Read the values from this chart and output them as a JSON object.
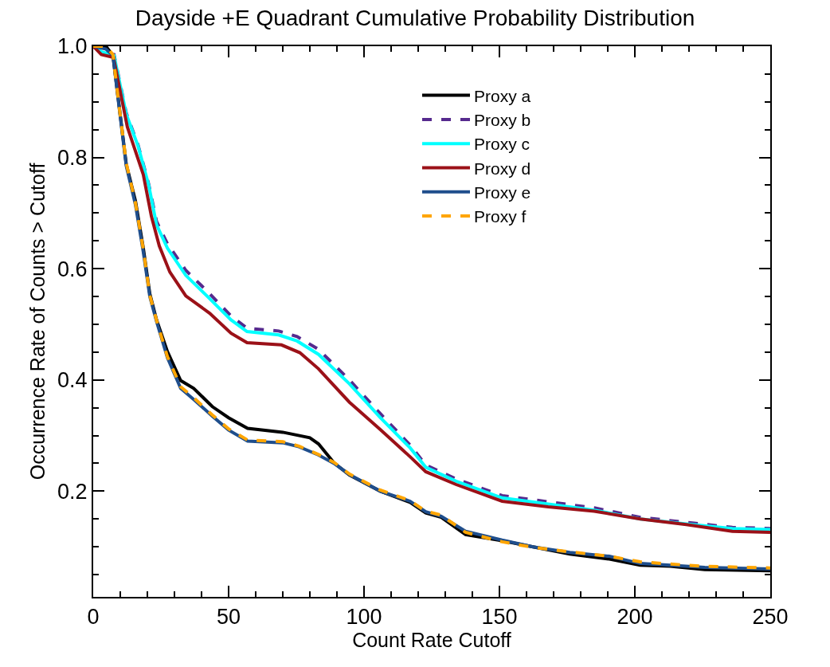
{
  "chart_data": {
    "type": "line",
    "title": "Dayside +E Quadrant Cumulative Probability Distribution",
    "xlabel": "Count Rate Cutoff",
    "ylabel": "Occurrence Rate of Counts > Cutoff",
    "xlim": [
      0,
      250
    ],
    "ylim": [
      0.01,
      1.0
    ],
    "xticks": [
      0,
      {
        "value": 10,
        "label": null
      },
      {
        "value": 20,
        "label": null
      },
      {
        "value": 30,
        "label": null
      },
      {
        "value": 40,
        "label": null
      },
      50,
      {
        "value": 60,
        "label": null
      },
      {
        "value": 70,
        "label": null
      },
      {
        "value": 80,
        "label": null
      },
      {
        "value": 90,
        "label": null
      },
      100,
      {
        "value": 110,
        "label": null
      },
      {
        "value": 120,
        "label": null
      },
      {
        "value": 130,
        "label": null
      },
      {
        "value": 140,
        "label": null
      },
      150,
      {
        "value": 160,
        "label": null
      },
      {
        "value": 170,
        "label": null
      },
      {
        "value": 180,
        "label": null
      },
      {
        "value": 190,
        "label": null
      },
      200,
      {
        "value": 210,
        "label": null
      },
      {
        "value": 220,
        "label": null
      },
      {
        "value": 230,
        "label": null
      },
      {
        "value": 240,
        "label": null
      },
      250
    ],
    "yticks": [
      {
        "value": 0.05,
        "label": null
      },
      {
        "value": 0.1,
        "label": null
      },
      {
        "value": 0.15,
        "label": null
      },
      0.2,
      {
        "value": 0.25,
        "label": null
      },
      {
        "value": 0.3,
        "label": null
      },
      {
        "value": 0.35,
        "label": null
      },
      0.4,
      {
        "value": 0.45,
        "label": null
      },
      {
        "value": 0.5,
        "label": null
      },
      {
        "value": 0.55,
        "label": null
      },
      0.6,
      {
        "value": 0.65,
        "label": null
      },
      {
        "value": 0.7,
        "label": null
      },
      {
        "value": 0.75,
        "label": null
      },
      0.8,
      {
        "value": 0.85,
        "label": null
      },
      {
        "value": 0.9,
        "label": null
      },
      {
        "value": 0.95,
        "label": null
      },
      {
        "value": 1.0,
        "label": "1.0"
      }
    ],
    "legend": "top right",
    "series": [
      {
        "name": "Proxy a",
        "color": "#000000",
        "line_style": "solid",
        "x": [
          0,
          4.7,
          7.3,
          9.7,
          12.2,
          15.6,
          18.5,
          20.9,
          23.4,
          27.4,
          32.3,
          37.1,
          44,
          50,
          57,
          70,
          80,
          83.2,
          88.9,
          94.6,
          106,
          117,
          122.8,
          128.5,
          137.5,
          151,
          162.4,
          176,
          190.6,
          202,
          213,
          225.8,
          250
        ],
        "values": [
          1.0,
          1.0,
          0.983,
          0.888,
          0.788,
          0.722,
          0.637,
          0.555,
          0.508,
          0.451,
          0.399,
          0.385,
          0.352,
          0.332,
          0.313,
          0.306,
          0.296,
          0.285,
          0.251,
          0.229,
          0.2,
          0.18,
          0.161,
          0.153,
          0.122,
          0.111,
          0.1,
          0.087,
          0.078,
          0.067,
          0.065,
          0.059,
          0.057
        ]
      },
      {
        "name": "Proxy b",
        "color": "#562a8e",
        "line_style": "dashed",
        "x": [
          0,
          3,
          7.7,
          12.2,
          16.6,
          20.5,
          23.4,
          27.4,
          34.2,
          42,
          50.9,
          56.8,
          68.5,
          75.3,
          83.2,
          94.6,
          105.9,
          117,
          122.8,
          134,
          151,
          168,
          185,
          202,
          219,
          236,
          250
        ],
        "values": [
          1.0,
          0.99,
          0.985,
          0.88,
          0.822,
          0.752,
          0.685,
          0.645,
          0.597,
          0.56,
          0.515,
          0.493,
          0.488,
          0.478,
          0.455,
          0.4,
          0.34,
          0.283,
          0.247,
          0.222,
          0.192,
          0.181,
          0.17,
          0.153,
          0.144,
          0.135,
          0.133
        ]
      },
      {
        "name": "Proxy c",
        "color": "#00ffff",
        "line_style": "solid",
        "x": [
          0,
          3,
          7.7,
          12.2,
          16.6,
          20.5,
          23.4,
          27.4,
          34.2,
          42,
          50.9,
          56.8,
          68.5,
          75.3,
          83.2,
          94.6,
          105.9,
          117,
          122.8,
          134,
          151,
          168,
          185,
          202,
          219,
          236,
          250
        ],
        "values": [
          1.0,
          0.99,
          0.983,
          0.878,
          0.82,
          0.75,
          0.679,
          0.637,
          0.588,
          0.551,
          0.508,
          0.487,
          0.481,
          0.47,
          0.446,
          0.393,
          0.333,
          0.278,
          0.243,
          0.218,
          0.188,
          0.177,
          0.166,
          0.15,
          0.141,
          0.133,
          0.131
        ]
      },
      {
        "name": "Proxy d",
        "color": "#9b1118",
        "line_style": "solid",
        "x": [
          0,
          3,
          7.5,
          12.6,
          18.5,
          21.5,
          24.4,
          28.3,
          34.2,
          43,
          50.9,
          56.8,
          69.5,
          76.3,
          83.2,
          94.6,
          106,
          117,
          122.8,
          134,
          151,
          168,
          185,
          202,
          219,
          236,
          250
        ],
        "values": [
          1.0,
          0.985,
          0.98,
          0.855,
          0.769,
          0.694,
          0.641,
          0.594,
          0.551,
          0.52,
          0.484,
          0.467,
          0.463,
          0.449,
          0.42,
          0.36,
          0.311,
          0.262,
          0.235,
          0.212,
          0.182,
          0.172,
          0.164,
          0.15,
          0.14,
          0.128,
          0.126
        ]
      },
      {
        "name": "Proxy e",
        "color": "#1f4e8c",
        "line_style": "solid",
        "x": [
          0,
          4.7,
          7.3,
          9.7,
          12.2,
          15.6,
          18.5,
          20.9,
          23.4,
          27.4,
          32.3,
          37.1,
          44,
          50,
          57,
          70,
          76,
          83.2,
          88.9,
          94.6,
          106,
          117,
          122.8,
          128.5,
          137.5,
          151,
          162.4,
          176,
          190.6,
          202,
          213,
          225.8,
          250
        ],
        "values": [
          1.0,
          0.995,
          0.983,
          0.885,
          0.785,
          0.715,
          0.63,
          0.55,
          0.505,
          0.44,
          0.385,
          0.365,
          0.335,
          0.31,
          0.29,
          0.287,
          0.28,
          0.265,
          0.25,
          0.23,
          0.2,
          0.182,
          0.163,
          0.155,
          0.128,
          0.112,
          0.1,
          0.09,
          0.083,
          0.07,
          0.067,
          0.063,
          0.06
        ]
      },
      {
        "name": "Proxy f",
        "color": "#ffa500",
        "line_style": "dashed",
        "x": [
          0,
          4.7,
          7.3,
          9.7,
          12.2,
          15.6,
          18.5,
          20.9,
          23.4,
          27.4,
          32.3,
          37.1,
          44,
          50,
          57,
          70,
          76,
          83.2,
          88.9,
          94.6,
          106,
          117,
          122.8,
          128.5,
          137.5,
          151,
          162.4,
          176,
          190.6,
          202,
          213,
          225.8,
          250
        ],
        "values": [
          1.0,
          1.0,
          0.985,
          0.887,
          0.79,
          0.718,
          0.635,
          0.552,
          0.507,
          0.442,
          0.388,
          0.368,
          0.337,
          0.312,
          0.292,
          0.289,
          0.281,
          0.266,
          0.252,
          0.231,
          0.202,
          0.183,
          0.164,
          0.157,
          0.126,
          0.109,
          0.099,
          0.091,
          0.083,
          0.073,
          0.069,
          0.065,
          0.062
        ]
      }
    ]
  }
}
